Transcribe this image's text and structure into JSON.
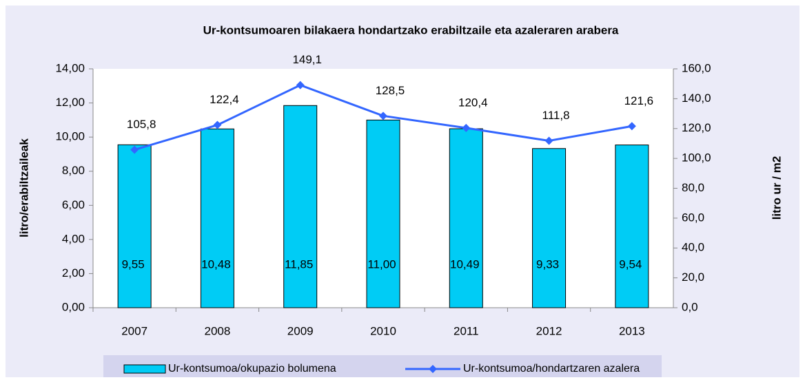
{
  "chart_data": {
    "type": "bar-line",
    "title": "Ur-kontsumoaren bilakaera hondartzako erabiltzaile eta azaleraren arabera",
    "y_label": "litro/erabiltzaileak",
    "y2_label": "litro ur / m2",
    "categories": [
      "2007",
      "2008",
      "2009",
      "2010",
      "2011",
      "2012",
      "2013"
    ],
    "series": [
      {
        "name": "Ur-kontsumoa/okupazio bolumena",
        "type": "bar",
        "color": "#00ccf5",
        "values": [
          9.55,
          10.48,
          11.85,
          11.0,
          10.49,
          9.33,
          9.54
        ],
        "value_labels": [
          "9,55",
          "10,48",
          "11,85",
          "11,00",
          "10,49",
          "9,33",
          "9,54"
        ]
      },
      {
        "name": "Ur-kontsumoa/hondartzaren azalera",
        "type": "line",
        "axis": "y2",
        "color": "#3366ff",
        "values": [
          105.8,
          122.4,
          149.1,
          128.5,
          120.4,
          111.8,
          121.6
        ],
        "value_labels": [
          "105,8",
          "122,4",
          "149,1",
          "128,5",
          "120,4",
          "111,8",
          "121,6"
        ]
      }
    ],
    "ylim": [
      0,
      14
    ],
    "yticks": [
      {
        "value": 0,
        "label": "0,00"
      },
      {
        "value": 2,
        "label": "2,00"
      },
      {
        "value": 4,
        "label": "4,00"
      },
      {
        "value": 6,
        "label": "6,00"
      },
      {
        "value": 8,
        "label": "8,00"
      },
      {
        "value": 10,
        "label": "10,00"
      },
      {
        "value": 12,
        "label": "12,00"
      },
      {
        "value": 14,
        "label": "14,00"
      }
    ],
    "y2lim": [
      0,
      160
    ],
    "y2ticks": [
      {
        "value": 0,
        "label": "0,0"
      },
      {
        "value": 20,
        "label": "20,0"
      },
      {
        "value": 40,
        "label": "40,0"
      },
      {
        "value": 60,
        "label": "60,0"
      },
      {
        "value": 80,
        "label": "80,0"
      },
      {
        "value": 100,
        "label": "100,0"
      },
      {
        "value": 120,
        "label": "120,0"
      },
      {
        "value": 140,
        "label": "140,0"
      },
      {
        "value": 160,
        "label": "160,0"
      }
    ],
    "legend": "bottom"
  }
}
